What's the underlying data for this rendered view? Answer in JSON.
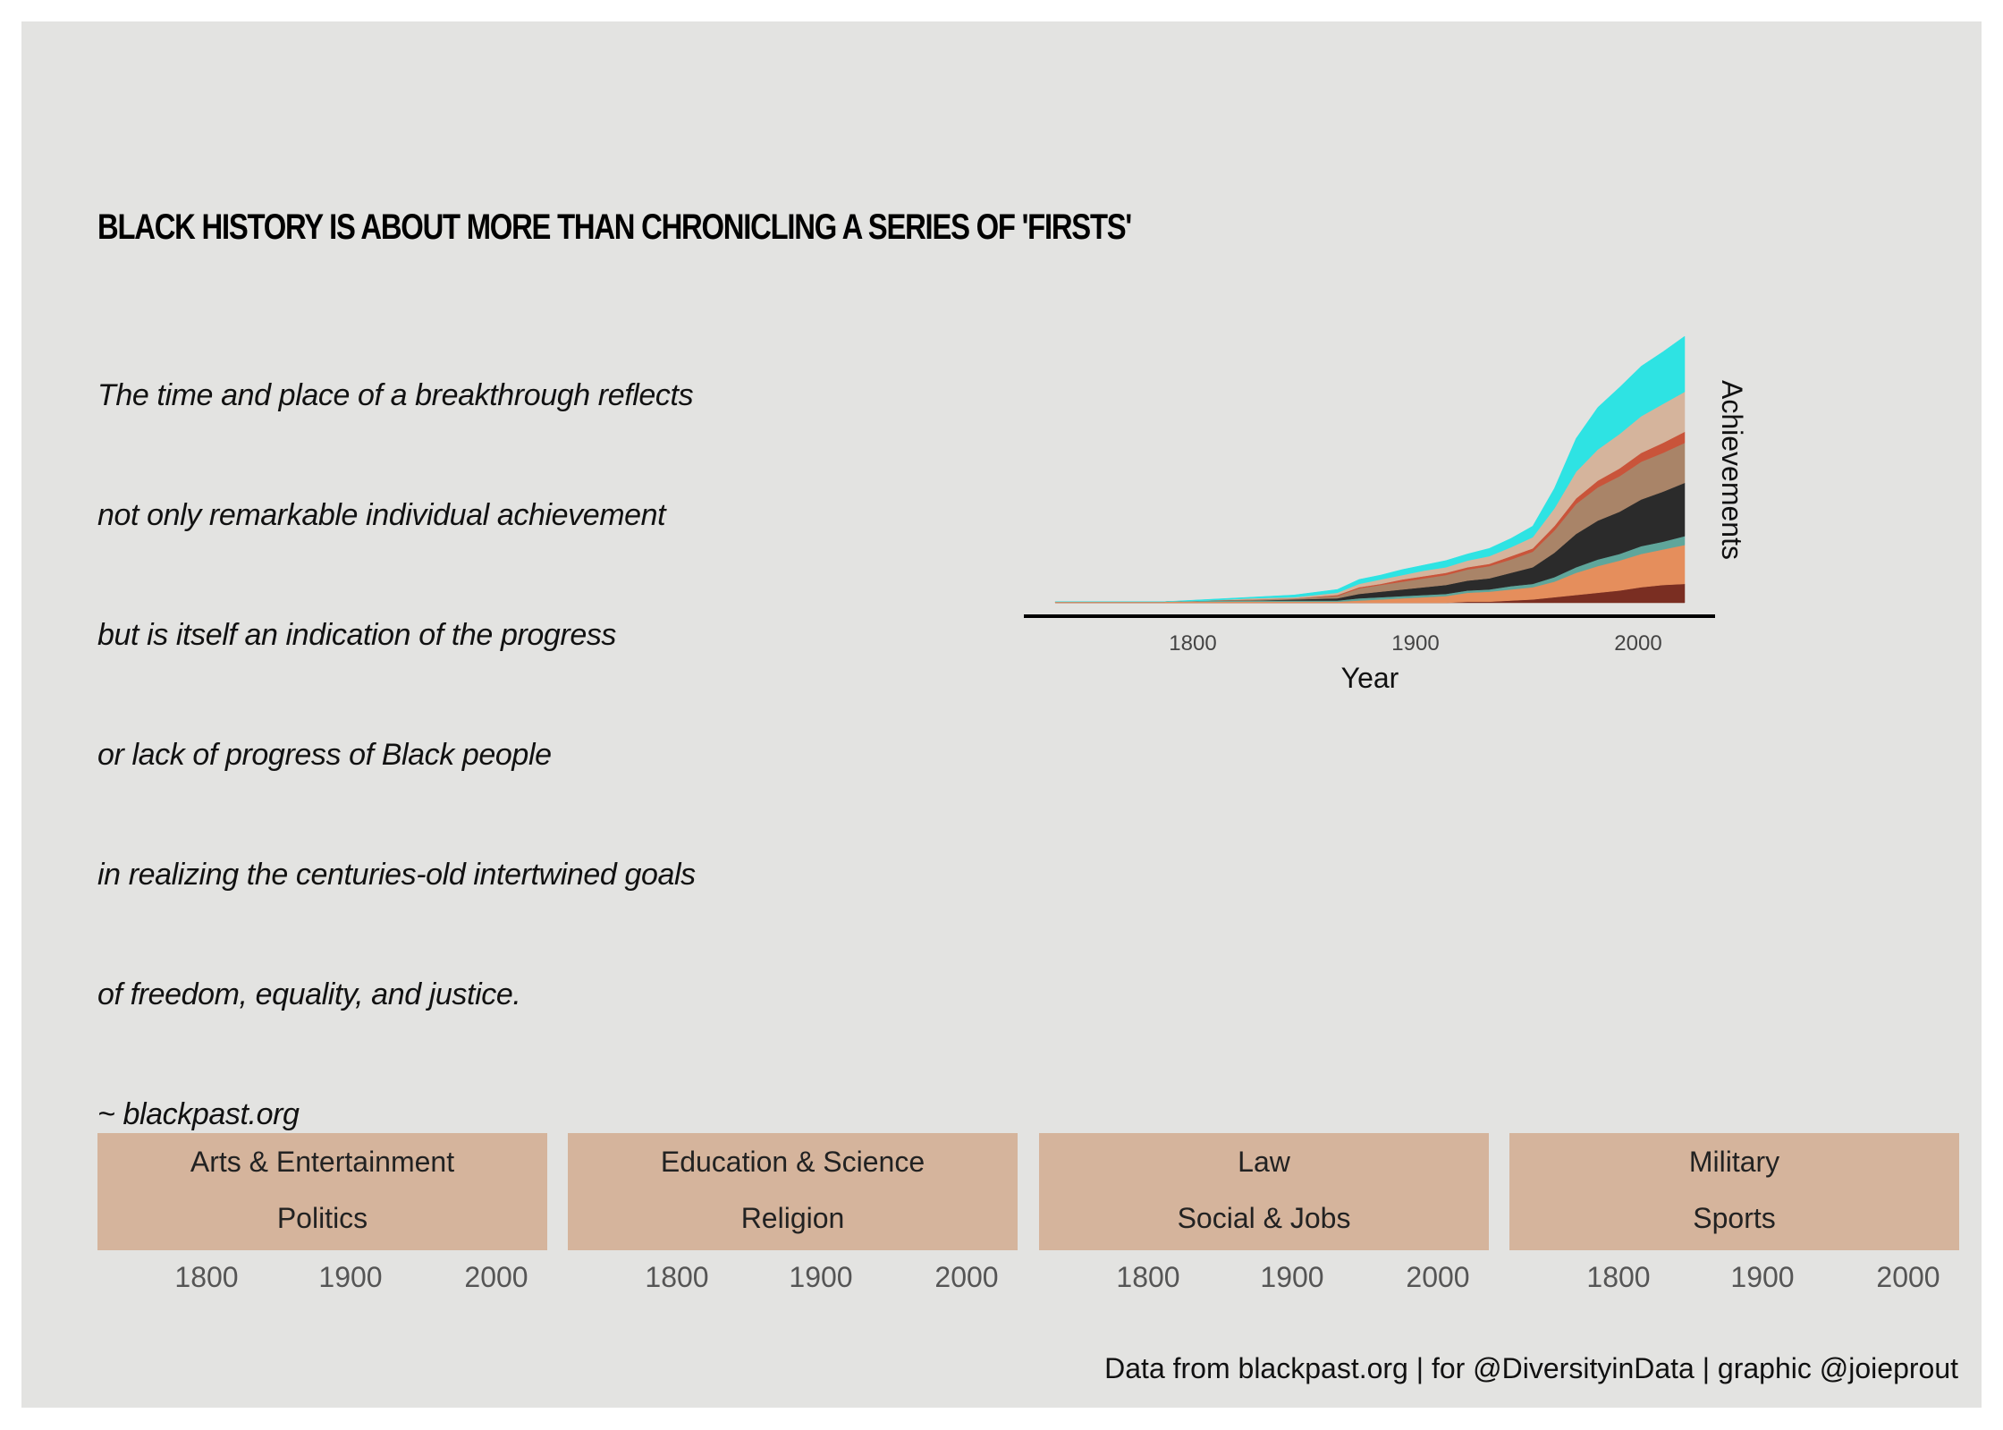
{
  "title": "BLACK HISTORY IS ABOUT MORE THAN CHRONICLING A SERIES OF 'FIRSTS'",
  "quote": [
    "The time and place of a breakthrough reflects",
    "not only remarkable individual achievement",
    "but is itself an indication of the progress",
    "or lack of progress of Black people",
    "in realizing the centuries-old intertwined goals",
    "of freedom, equality, and justice.",
    "~ blackpast.org"
  ],
  "caption": "Data from blackpast.org | for @DiversityinData | graphic @joieprout",
  "chart_data": [
    {
      "type": "area",
      "stacked": true,
      "xlabel": "Year",
      "ylabel": "Achievements",
      "xlim": [
        1730,
        2020
      ],
      "x_ticks": [
        "1800",
        "1900",
        "2000"
      ],
      "x": [
        1730,
        1760,
        1780,
        1800,
        1820,
        1840,
        1860,
        1870,
        1880,
        1890,
        1900,
        1910,
        1920,
        1930,
        1940,
        1950,
        1960,
        1970,
        1980,
        1990,
        2000,
        2010,
        2020
      ],
      "series": [
        {
          "color": "#7a2e22",
          "values": [
            0,
            0,
            0,
            0,
            0,
            0,
            0,
            0,
            0,
            0,
            0,
            0,
            1,
            1,
            2,
            3,
            5,
            7,
            9,
            11,
            14,
            16,
            17
          ]
        },
        {
          "color": "#e58e5c",
          "values": [
            1,
            1,
            1,
            1,
            1,
            1,
            1,
            2,
            3,
            4,
            5,
            6,
            8,
            9,
            10,
            11,
            14,
            20,
            24,
            27,
            30,
            32,
            35
          ]
        },
        {
          "color": "#5fa69b",
          "values": [
            0,
            0,
            0,
            1,
            1,
            1,
            1,
            2,
            2,
            2,
            2,
            2,
            2,
            2,
            3,
            3,
            4,
            5,
            6,
            6,
            7,
            7,
            8
          ]
        },
        {
          "color": "#2b2b2b",
          "values": [
            0,
            0,
            0,
            0,
            0,
            1,
            2,
            4,
            5,
            6,
            7,
            8,
            9,
            10,
            12,
            15,
            22,
            30,
            35,
            38,
            42,
            45,
            48
          ]
        },
        {
          "color": "#a98468",
          "values": [
            0,
            0,
            0,
            0,
            1,
            1,
            2,
            5,
            6,
            7,
            8,
            9,
            10,
            11,
            12,
            14,
            20,
            27,
            30,
            32,
            34,
            35,
            36
          ]
        },
        {
          "color": "#c9543a",
          "values": [
            0,
            0,
            0,
            0,
            0,
            0,
            1,
            1,
            1,
            2,
            2,
            2,
            2,
            2,
            3,
            3,
            4,
            5,
            6,
            7,
            8,
            9,
            10
          ]
        },
        {
          "color": "#d5b49c",
          "values": [
            0,
            0,
            0,
            0,
            1,
            1,
            2,
            3,
            4,
            4,
            5,
            5,
            6,
            7,
            8,
            10,
            16,
            24,
            28,
            31,
            33,
            35,
            36
          ]
        },
        {
          "color": "#2ee3e3",
          "values": [
            0,
            0,
            0,
            1,
            1,
            2,
            3,
            4,
            4,
            5,
            5,
            6,
            6,
            7,
            8,
            10,
            18,
            30,
            38,
            42,
            45,
            47,
            50
          ]
        }
      ]
    },
    {
      "type": "area",
      "facets": [
        {
          "top": "Arts & Entertainment",
          "bottom": "Politics"
        },
        {
          "top": "Education & Science",
          "bottom": "Religion"
        },
        {
          "top": "Law",
          "bottom": "Social & Jobs"
        },
        {
          "top": "Military",
          "bottom": "Sports"
        }
      ],
      "x_ticks": [
        "1800",
        "1900",
        "2000"
      ]
    }
  ]
}
